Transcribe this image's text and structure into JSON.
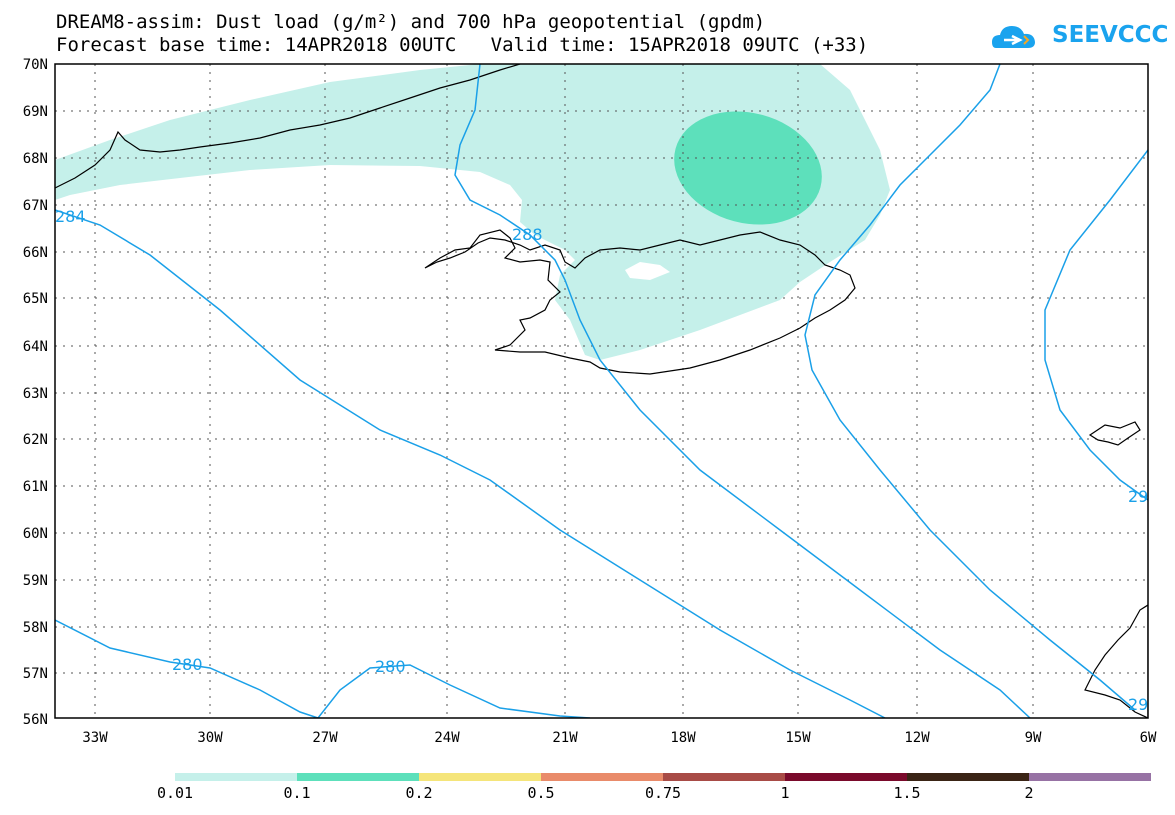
{
  "title_line1": "DREAM8-assim: Dust load (g/m²) and 700 hPa geopotential (gpdm)",
  "title_line2": "Forecast base time: 14APR2018 00UTC   Valid time: 15APR2018 09UTC (+33)",
  "logo": {
    "text": "SEEVCCC",
    "icon": "cloud-icon",
    "color": "#1aa3ee"
  },
  "lat_labels": [
    "70N",
    "69N",
    "68N",
    "67N",
    "66N",
    "65N",
    "64N",
    "63N",
    "62N",
    "61N",
    "60N",
    "59N",
    "58N",
    "57N",
    "56N"
  ],
  "lon_labels": [
    "33W",
    "30W",
    "27W",
    "24W",
    "21W",
    "18W",
    "15W",
    "12W",
    "9W",
    "6W"
  ],
  "contour_labels": {
    "label_284": "284",
    "label_288": "288",
    "label_280a": "280",
    "label_280b": "280",
    "label_292a": "29",
    "label_292b": "29"
  },
  "colorbar": {
    "colors": [
      "#c5f0ea",
      "#5de0bb",
      "#f5e57a",
      "#e98b6a",
      "#a84b46",
      "#7a0a2b",
      "#3a2415",
      "#9772a4"
    ],
    "labels": [
      "0.01",
      "0.1",
      "0.2",
      "0.5",
      "0.75",
      "1",
      "1.5",
      "2"
    ]
  },
  "colors": {
    "contour": "#1aa0e8",
    "coast": "#000000",
    "dust_low": "#c5f0ea",
    "dust_mid": "#5de0bb"
  }
}
